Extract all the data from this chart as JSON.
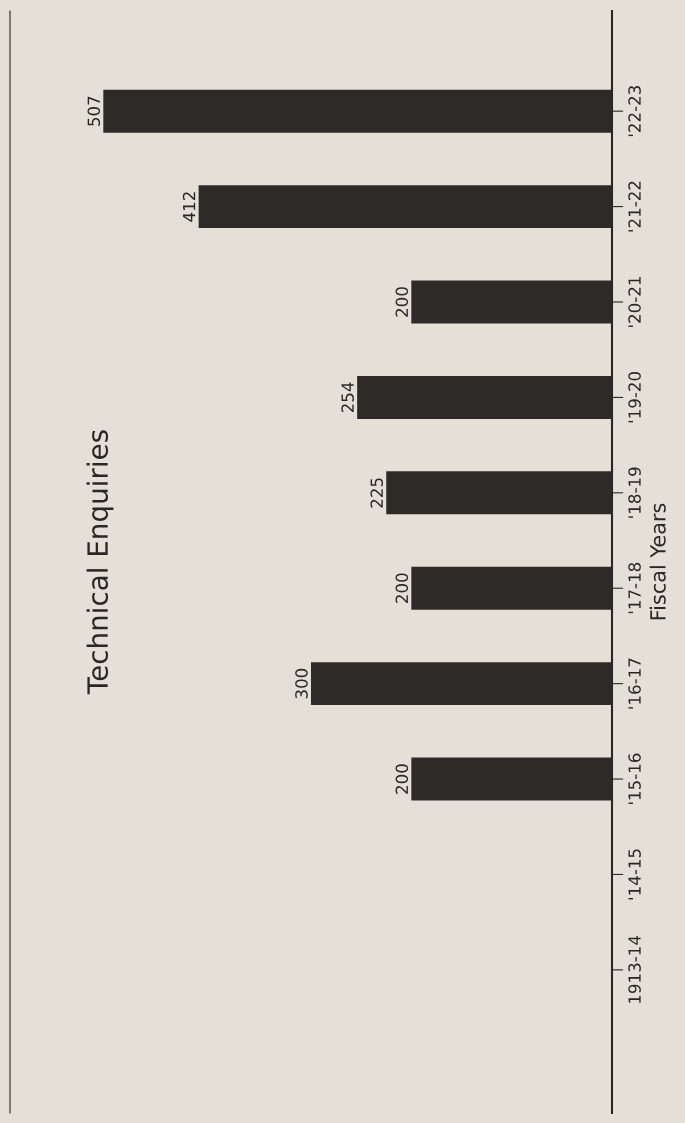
{
  "chart_data": {
    "type": "bar",
    "orientation": "horizontal",
    "title": "Technical Enquiries",
    "ylabel": "Fiscal Years",
    "categories": [
      "'22-23",
      "'21-22",
      "'20-21",
      "'19-20",
      "'18-19",
      "'17-18",
      "'16-17",
      "'15-16",
      "'14-15",
      "1913-14"
    ],
    "values": [
      507,
      412,
      200,
      254,
      225,
      200,
      300,
      200,
      null,
      null
    ],
    "color": "#2e2a28",
    "xlim": [
      600,
      0
    ],
    "tick_labels": "y",
    "data_labels": true,
    "grid": false,
    "legend": false
  }
}
